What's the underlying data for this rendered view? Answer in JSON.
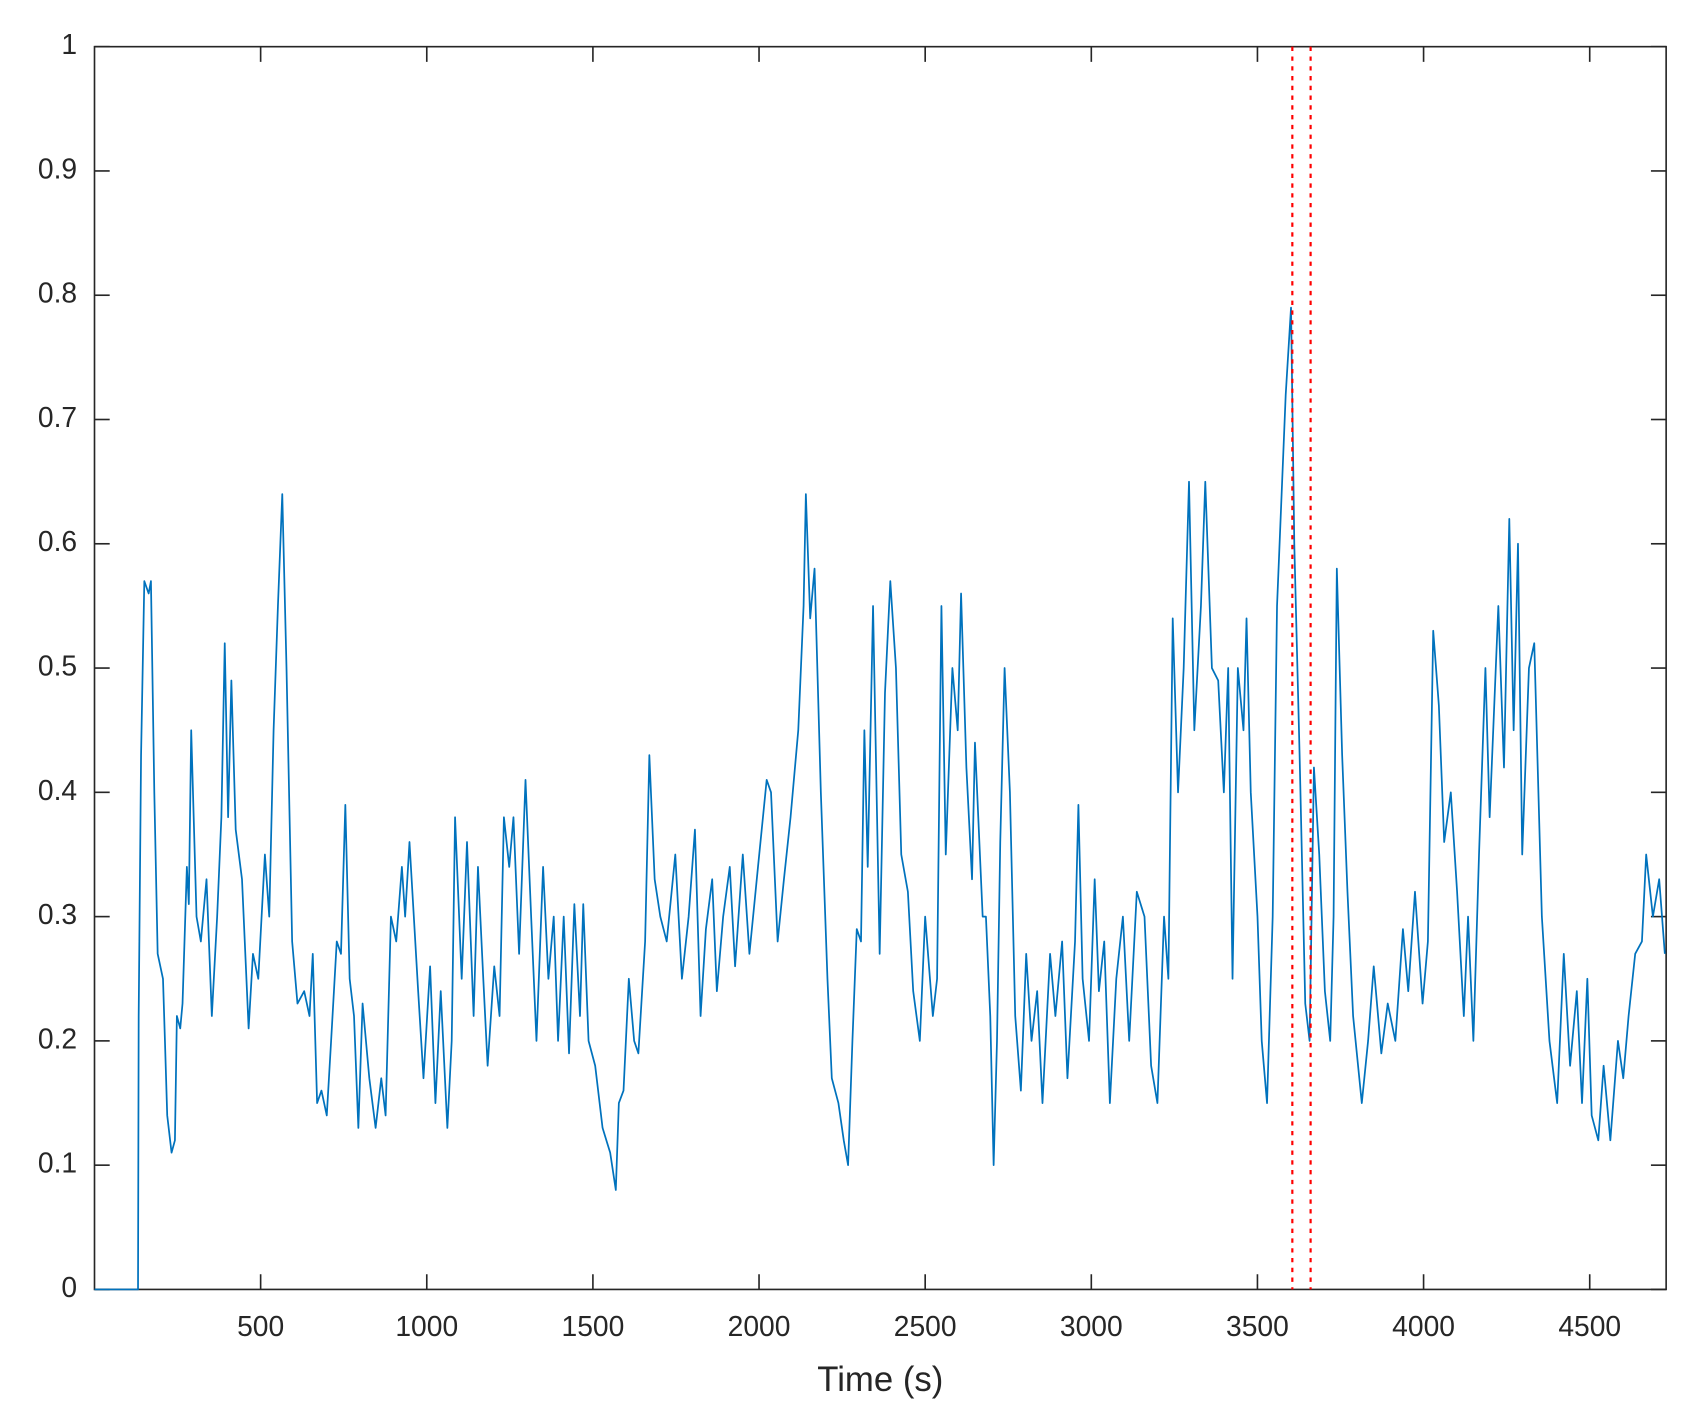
{
  "chart_data": {
    "type": "line",
    "xlabel": "Time (s)",
    "x": [
      0,
      131,
      133,
      140,
      150,
      163,
      170,
      180,
      190,
      206,
      212,
      219,
      232,
      242,
      248,
      258,
      265,
      278,
      284,
      291,
      307,
      320,
      337,
      353,
      369,
      382,
      392,
      402,
      412,
      425,
      444,
      464,
      477,
      493,
      513,
      526,
      539,
      552,
      565,
      578,
      595,
      611,
      631,
      647,
      657,
      670,
      683,
      699,
      712,
      729,
      742,
      755,
      768,
      781,
      794,
      807,
      827,
      846,
      863,
      876,
      892,
      908,
      925,
      935,
      948,
      961,
      974,
      990,
      1010,
      1026,
      1042,
      1062,
      1075,
      1085,
      1105,
      1121,
      1141,
      1154,
      1170,
      1183,
      1203,
      1219,
      1232,
      1248,
      1261,
      1278,
      1297,
      1314,
      1330,
      1350,
      1366,
      1382,
      1395,
      1412,
      1428,
      1444,
      1461,
      1471,
      1487,
      1507,
      1529,
      1552,
      1569,
      1578,
      1592,
      1608,
      1624,
      1637,
      1657,
      1670,
      1686,
      1703,
      1722,
      1748,
      1768,
      1788,
      1807,
      1824,
      1840,
      1859,
      1873,
      1892,
      1912,
      1928,
      1951,
      1971,
      1997,
      2023,
      2036,
      2056,
      2075,
      2095,
      2118,
      2134,
      2141,
      2154,
      2167,
      2186,
      2206,
      2219,
      2239,
      2255,
      2268,
      2281,
      2294,
      2307,
      2317,
      2327,
      2343,
      2363,
      2379,
      2395,
      2412,
      2428,
      2448,
      2464,
      2484,
      2500,
      2523,
      2536,
      2549,
      2562,
      2582,
      2598,
      2608,
      2624,
      2641,
      2650,
      2673,
      2683,
      2696,
      2706,
      2716,
      2726,
      2739,
      2755,
      2771,
      2788,
      2804,
      2820,
      2837,
      2853,
      2876,
      2892,
      2912,
      2928,
      2951,
      2961,
      2974,
      2993,
      3010,
      3023,
      3039,
      3056,
      3075,
      3095,
      3114,
      3137,
      3160,
      3180,
      3199,
      3219,
      3232,
      3245,
      3261,
      3278,
      3294,
      3310,
      3330,
      3343,
      3363,
      3382,
      3399,
      3412,
      3425,
      3441,
      3458,
      3467,
      3480,
      3500,
      3513,
      3529,
      3546,
      3559,
      3585,
      3601,
      3611,
      3627,
      3644,
      3657,
      3670,
      3686,
      3703,
      3719,
      3729,
      3739,
      3755,
      3771,
      3788,
      3814,
      3833,
      3850,
      3873,
      3892,
      3915,
      3938,
      3954,
      3974,
      3997,
      4013,
      4029,
      4046,
      4062,
      4082,
      4101,
      4121,
      4134,
      4150,
      4167,
      4186,
      4199,
      4225,
      4242,
      4258,
      4271,
      4284,
      4297,
      4317,
      4333,
      4356,
      4379,
      4402,
      4422,
      4441,
      4461,
      4477,
      4493,
      4506,
      4526,
      4542,
      4562,
      4585,
      4601,
      4617,
      4637,
      4657,
      4670,
      4690,
      4709,
      4726
    ],
    "series": [
      {
        "color": "#0072bd",
        "values": [
          0,
          0,
          0.22,
          0.43,
          0.57,
          0.56,
          0.57,
          0.4,
          0.27,
          0.25,
          0.2,
          0.14,
          0.11,
          0.12,
          0.22,
          0.21,
          0.23,
          0.34,
          0.31,
          0.45,
          0.3,
          0.28,
          0.33,
          0.22,
          0.3,
          0.38,
          0.52,
          0.38,
          0.49,
          0.37,
          0.33,
          0.21,
          0.27,
          0.25,
          0.35,
          0.3,
          0.45,
          0.55,
          0.64,
          0.5,
          0.28,
          0.23,
          0.24,
          0.22,
          0.27,
          0.15,
          0.16,
          0.14,
          0.2,
          0.28,
          0.27,
          0.39,
          0.25,
          0.22,
          0.13,
          0.23,
          0.17,
          0.13,
          0.17,
          0.14,
          0.3,
          0.28,
          0.34,
          0.3,
          0.36,
          0.3,
          0.24,
          0.17,
          0.26,
          0.15,
          0.24,
          0.13,
          0.2,
          0.38,
          0.25,
          0.36,
          0.22,
          0.34,
          0.25,
          0.18,
          0.26,
          0.22,
          0.38,
          0.34,
          0.38,
          0.27,
          0.41,
          0.3,
          0.2,
          0.34,
          0.25,
          0.3,
          0.2,
          0.3,
          0.19,
          0.31,
          0.22,
          0.31,
          0.2,
          0.18,
          0.13,
          0.11,
          0.08,
          0.15,
          0.16,
          0.25,
          0.2,
          0.19,
          0.28,
          0.43,
          0.33,
          0.3,
          0.28,
          0.35,
          0.25,
          0.3,
          0.37,
          0.22,
          0.29,
          0.33,
          0.24,
          0.3,
          0.34,
          0.26,
          0.35,
          0.27,
          0.34,
          0.41,
          0.4,
          0.28,
          0.33,
          0.38,
          0.45,
          0.55,
          0.64,
          0.54,
          0.58,
          0.4,
          0.25,
          0.17,
          0.15,
          0.12,
          0.1,
          0.2,
          0.29,
          0.28,
          0.45,
          0.34,
          0.55,
          0.27,
          0.48,
          0.57,
          0.5,
          0.35,
          0.32,
          0.24,
          0.2,
          0.3,
          0.22,
          0.25,
          0.55,
          0.35,
          0.5,
          0.45,
          0.56,
          0.42,
          0.33,
          0.44,
          0.3,
          0.3,
          0.22,
          0.1,
          0.2,
          0.36,
          0.5,
          0.4,
          0.22,
          0.16,
          0.27,
          0.2,
          0.24,
          0.15,
          0.27,
          0.22,
          0.28,
          0.17,
          0.28,
          0.39,
          0.25,
          0.2,
          0.33,
          0.24,
          0.28,
          0.15,
          0.25,
          0.3,
          0.2,
          0.32,
          0.3,
          0.18,
          0.15,
          0.3,
          0.25,
          0.54,
          0.4,
          0.5,
          0.65,
          0.45,
          0.55,
          0.65,
          0.5,
          0.49,
          0.4,
          0.5,
          0.25,
          0.5,
          0.45,
          0.54,
          0.4,
          0.3,
          0.2,
          0.15,
          0.3,
          0.55,
          0.72,
          0.79,
          0.6,
          0.43,
          0.23,
          0.2,
          0.42,
          0.35,
          0.24,
          0.2,
          0.3,
          0.58,
          0.43,
          0.32,
          0.22,
          0.15,
          0.2,
          0.26,
          0.19,
          0.23,
          0.2,
          0.29,
          0.24,
          0.32,
          0.23,
          0.28,
          0.53,
          0.47,
          0.36,
          0.4,
          0.32,
          0.22,
          0.3,
          0.2,
          0.35,
          0.5,
          0.38,
          0.55,
          0.42,
          0.62,
          0.45,
          0.6,
          0.35,
          0.5,
          0.52,
          0.3,
          0.2,
          0.15,
          0.27,
          0.18,
          0.24,
          0.15,
          0.25,
          0.14,
          0.12,
          0.18,
          0.12,
          0.2,
          0.17,
          0.22,
          0.27,
          0.28,
          0.35,
          0.3,
          0.33,
          0.27
        ]
      }
    ],
    "vlines": [
      3605,
      3660
    ],
    "vline_color": "#ff0000",
    "xlim": [
      0,
      4730
    ],
    "xticks": [
      500,
      1000,
      1500,
      2000,
      2500,
      3000,
      3500,
      4000,
      4500
    ],
    "ylim": [
      0,
      1
    ],
    "yticks": [
      0,
      0.1,
      0.2,
      0.3,
      0.4,
      0.5,
      0.6,
      0.7,
      0.8,
      0.9,
      1
    ]
  }
}
